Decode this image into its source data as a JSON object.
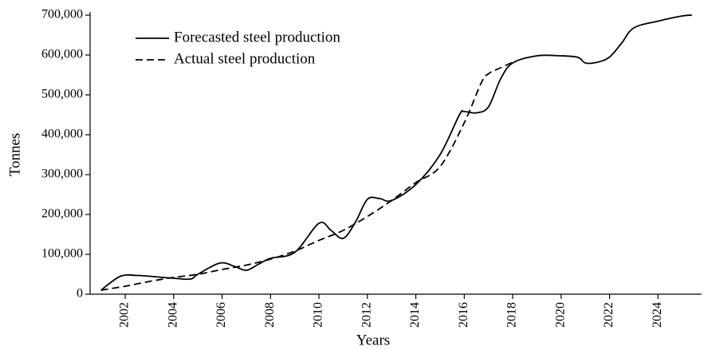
{
  "chart_data": {
    "type": "line",
    "xlabel": "Years",
    "ylabel": "Tonnes",
    "xlim": [
      2000.55,
      2025.8
    ],
    "ylim": [
      0,
      700000
    ],
    "xticks": [
      2002,
      2004,
      2006,
      2008,
      2010,
      2012,
      2014,
      2016,
      2018,
      2020,
      2022,
      2024
    ],
    "yticks": [
      0,
      {
        "value": 100000,
        "label": "100,000"
      },
      {
        "value": 200000,
        "label": "200,000"
      },
      {
        "value": 300000,
        "label": "300,000"
      },
      {
        "value": 400000,
        "label": "400,000"
      },
      {
        "value": 500000,
        "label": "500,000"
      },
      {
        "value": 600000,
        "label": "600,000"
      },
      {
        "value": 700000,
        "label": "700,000"
      }
    ],
    "legend": "upper left",
    "series": [
      {
        "name": "Forecasted steel production",
        "color": "#000000",
        "dash": false,
        "x": [
          2001,
          2001.8,
          2002.5,
          2003,
          2004,
          2004.7,
          2005,
          2005.9,
          2006.5,
          2007,
          2007.5,
          2008,
          2009,
          2010,
          2010.5,
          2011,
          2011.5,
          2012,
          2012.5,
          2013,
          2014,
          2015,
          2015.8,
          2016,
          2016.5,
          2017,
          2017.5,
          2018,
          2019,
          2020,
          2020.7,
          2021,
          2021.5,
          2022,
          2022.5,
          2023,
          2024,
          2025,
          2025.4
        ],
        "values": [
          10000,
          45000,
          47000,
          45000,
          40000,
          38000,
          50000,
          78000,
          70000,
          60000,
          75000,
          90000,
          105000,
          178000,
          160000,
          140000,
          180000,
          238000,
          240000,
          235000,
          275000,
          350000,
          450000,
          458000,
          455000,
          470000,
          540000,
          580000,
          598000,
          598000,
          594000,
          580000,
          582000,
          595000,
          630000,
          668000,
          685000,
          698000,
          700000
        ]
      },
      {
        "name": "Actual steel production",
        "color": "#000000",
        "dash": true,
        "x": [
          2001,
          2002,
          2003,
          2004,
          2005,
          2006,
          2007,
          2008,
          2009,
          2010,
          2011,
          2012,
          2013,
          2014,
          2015,
          2016,
          2016.7,
          2017,
          2017.5,
          2018
        ],
        "values": [
          10000,
          20000,
          32000,
          42000,
          50000,
          62000,
          73000,
          88000,
          108000,
          135000,
          160000,
          195000,
          235000,
          280000,
          320000,
          430000,
          530000,
          553000,
          568000,
          582000
        ]
      }
    ]
  }
}
